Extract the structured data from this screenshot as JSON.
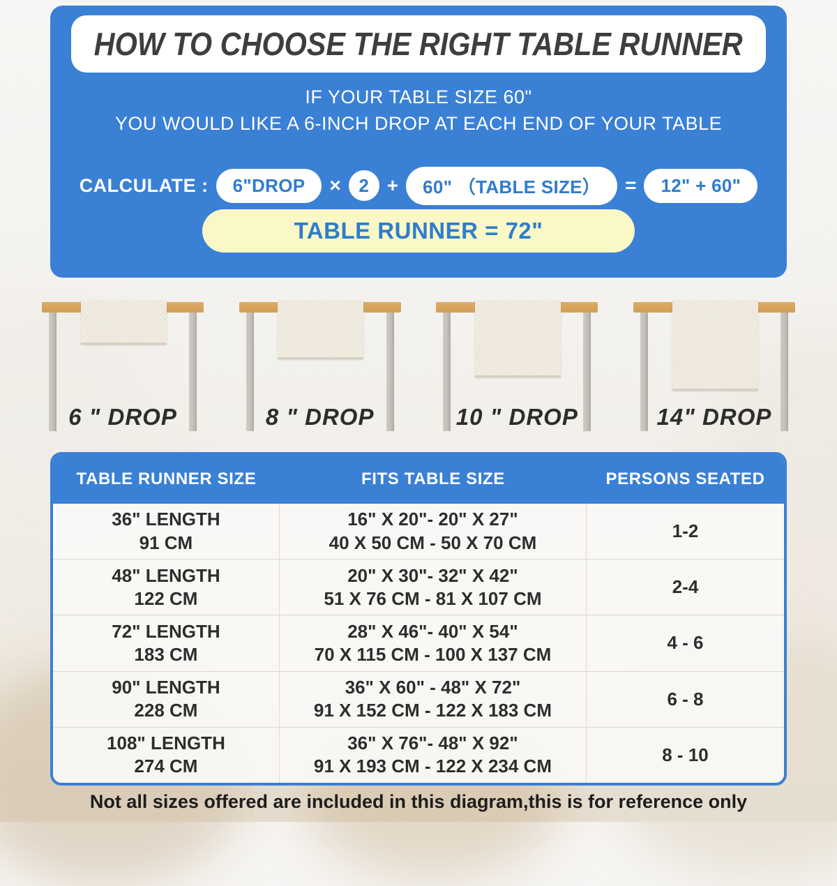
{
  "colors": {
    "accent_blue": "#3a80d5",
    "highlight_yellow": "#faf8c6",
    "tabletop_tan": "#d9a762",
    "runner_cream": "#f1ece1"
  },
  "hero": {
    "title": "HOW TO CHOOSE THE RIGHT TABLE RUNNER",
    "line1": "IF YOUR TABLE SIZE 60\"",
    "line2": "YOU WOULD LIKE A 6-INCH DROP AT EACH END OF YOUR TABLE",
    "calc": {
      "label": "CALCULATE :",
      "drop_pill": "6\"DROP",
      "times": "×",
      "factor": "2",
      "plus": "+",
      "size_pill": "60\" （TABLE SIZE）",
      "equals": "=",
      "result_pill": "12\" + 60\""
    },
    "result": "TABLE RUNNER = 72\""
  },
  "drops": [
    {
      "label": "6 \" DROP"
    },
    {
      "label": "8 \" DROP"
    },
    {
      "label": "10 \" DROP"
    },
    {
      "label": "14\" DROP"
    }
  ],
  "size_table": {
    "headers": [
      "TABLE RUNNER SIZE",
      "FITS TABLE SIZE",
      "PERSONS SEATED"
    ],
    "rows": [
      {
        "runner_in": "36\" LENGTH",
        "runner_cm": "91 CM",
        "fits_in": "16\" X 20\"- 20\" X 27\"",
        "fits_cm": "40 X 50 CM - 50 X 70 CM",
        "persons": "1-2"
      },
      {
        "runner_in": "48\" LENGTH",
        "runner_cm": "122 CM",
        "fits_in": "20\" X 30\"- 32\" X 42\"",
        "fits_cm": "51 X 76 CM - 81 X 107 CM",
        "persons": "2-4"
      },
      {
        "runner_in": "72\" LENGTH",
        "runner_cm": "183 CM",
        "fits_in": "28\" X 46\"- 40\" X 54\"",
        "fits_cm": "70 X 115 CM - 100 X 137 CM",
        "persons": "4 - 6"
      },
      {
        "runner_in": "90\" LENGTH",
        "runner_cm": "228 CM",
        "fits_in": "36\" X 60\" - 48\" X 72\"",
        "fits_cm": "91 X 152 CM - 122 X 183 CM",
        "persons": "6 - 8"
      },
      {
        "runner_in": "108\" LENGTH",
        "runner_cm": "274 CM",
        "fits_in": "36\" X 76\"- 48\" X 92\"",
        "fits_cm": "91 X 193 CM - 122 X 234 CM",
        "persons": "8 - 10"
      }
    ]
  },
  "footer": {
    "note": "Not all sizes offered are included in this diagram,this is for reference only"
  }
}
